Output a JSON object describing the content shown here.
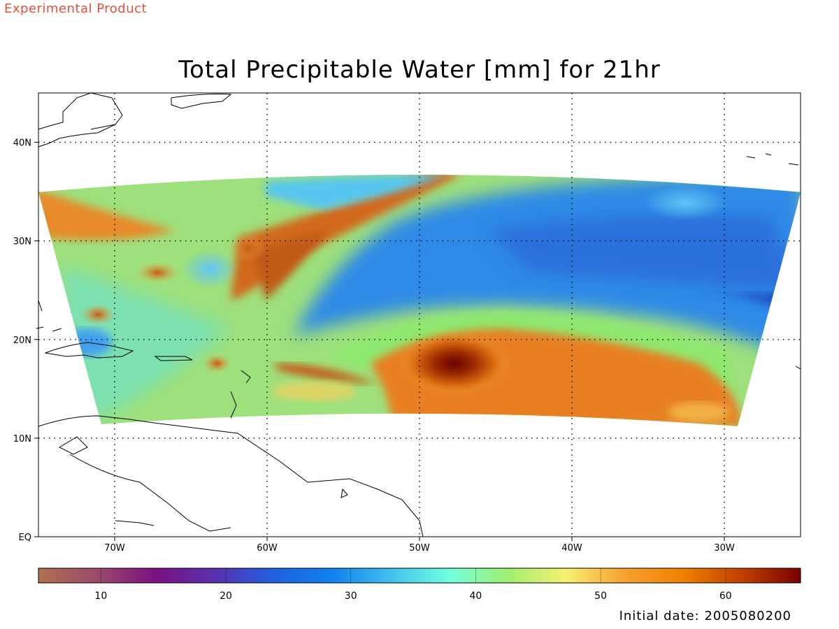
{
  "banner": "Experimental Product",
  "title": "Total Precipitable Water [mm] for 21hr",
  "initial_date": "Initial date: 2005080200",
  "map": {
    "lon_range": [
      -75,
      -25
    ],
    "lat_range": [
      0,
      45
    ],
    "lon_ticks": [
      {
        "lon": -70,
        "label": "70W"
      },
      {
        "lon": -60,
        "label": "60W"
      },
      {
        "lon": -50,
        "label": "50W"
      },
      {
        "lon": -40,
        "label": "40W"
      },
      {
        "lon": -30,
        "label": "30W"
      }
    ],
    "lat_ticks": [
      {
        "lat": 0,
        "label": "EQ"
      },
      {
        "lat": 10,
        "label": "10N"
      },
      {
        "lat": 20,
        "label": "20N"
      },
      {
        "lat": 30,
        "label": "30N"
      },
      {
        "lat": 40,
        "label": "40N"
      }
    ],
    "gridlines": "dotted"
  },
  "colorbar": {
    "range": [
      5,
      66
    ],
    "ticks": [
      10,
      20,
      30,
      40,
      50,
      60
    ],
    "stops": [
      "#b07050",
      "#9a4a6a",
      "#7a1080",
      "#5a30b0",
      "#2060e0",
      "#1080f0",
      "#40c0f0",
      "#70ffe0",
      "#a0f070",
      "#f8f070",
      "#f8a030",
      "#f08000",
      "#c04000",
      "#7a0000"
    ]
  },
  "colors": {
    "banner": "#e8503a",
    "frame": "#000000",
    "land_outline": "#000000"
  }
}
